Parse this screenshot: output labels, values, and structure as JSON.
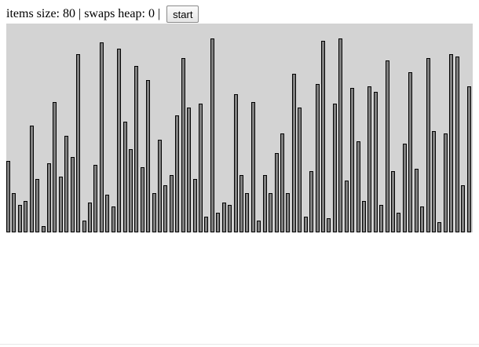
{
  "toolbar": {
    "items_size_label": "items size:",
    "items_size_value": "80",
    "separator": "|",
    "swaps_heap_label": "swaps heap:",
    "swaps_heap_value": "0",
    "start_button_label": "start"
  },
  "visualization": {
    "background_color": "#d3d3d3",
    "bar_fill_color": "#808080",
    "bar_border_color": "#000000",
    "max_value": 100,
    "values": [
      36,
      20,
      14,
      16,
      54,
      27,
      3,
      35,
      66,
      28,
      49,
      38,
      90,
      6,
      15,
      34,
      96,
      19,
      13,
      93,
      56,
      42,
      84,
      33,
      77,
      20,
      47,
      24,
      29,
      59,
      88,
      63,
      27,
      65,
      8,
      98,
      10,
      15,
      14,
      70,
      29,
      20,
      66,
      6,
      29,
      20,
      40,
      50,
      20,
      80,
      63,
      8,
      31,
      75,
      97,
      7,
      65,
      98,
      26,
      73,
      46,
      16,
      74,
      71,
      14,
      87,
      31,
      10,
      45,
      81,
      32,
      13,
      88,
      51,
      5,
      50,
      90,
      89,
      24,
      74
    ]
  }
}
